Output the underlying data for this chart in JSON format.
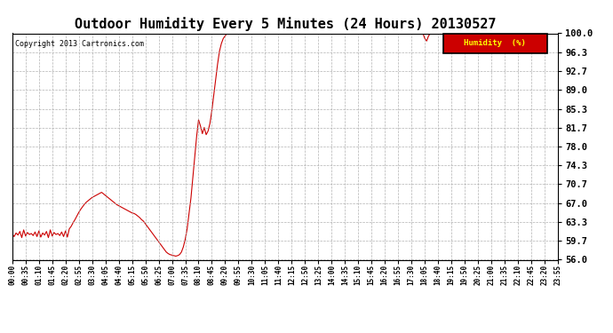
{
  "title": "Outdoor Humidity Every 5 Minutes (24 Hours) 20130527",
  "copyright": "Copyright 2013 Cartronics.com",
  "legend_label": "Humidity  (%)",
  "ylim": [
    56.0,
    100.0
  ],
  "yticks": [
    56.0,
    59.7,
    63.3,
    67.0,
    70.7,
    74.3,
    78.0,
    81.7,
    85.3,
    89.0,
    92.7,
    96.3,
    100.0
  ],
  "line_color": "#cc0000",
  "bg_color": "#ffffff",
  "grid_color": "#aaaaaa",
  "title_fontsize": 11,
  "legend_bg": "#cc0000",
  "legend_text_color": "#FFFF00",
  "humidity_values": [
    61.0,
    60.5,
    61.2,
    60.8,
    61.5,
    60.3,
    61.8,
    60.6,
    61.3,
    60.9,
    61.1,
    60.7,
    61.4,
    60.5,
    61.6,
    60.4,
    61.2,
    60.8,
    61.5,
    60.3,
    61.8,
    60.6,
    61.3,
    60.9,
    61.1,
    60.7,
    61.4,
    60.5,
    61.6,
    60.4,
    62.0,
    62.5,
    63.2,
    63.8,
    64.5,
    65.2,
    65.8,
    66.3,
    66.8,
    67.2,
    67.5,
    67.8,
    68.1,
    68.3,
    68.5,
    68.7,
    68.9,
    69.1,
    68.8,
    68.5,
    68.2,
    67.9,
    67.6,
    67.3,
    67.0,
    66.7,
    66.5,
    66.3,
    66.1,
    65.9,
    65.7,
    65.5,
    65.3,
    65.1,
    65.0,
    64.8,
    64.5,
    64.2,
    63.8,
    63.5,
    63.0,
    62.5,
    62.0,
    61.5,
    61.0,
    60.5,
    60.0,
    59.5,
    59.0,
    58.5,
    58.0,
    57.5,
    57.2,
    57.0,
    56.9,
    56.8,
    56.7,
    56.8,
    57.0,
    57.5,
    58.5,
    60.0,
    62.0,
    65.0,
    68.0,
    72.0,
    76.0,
    80.0,
    83.2,
    82.0,
    80.5,
    81.7,
    80.3,
    81.0,
    82.5,
    85.0,
    88.0,
    91.0,
    94.0,
    96.5,
    98.0,
    99.0,
    99.5,
    100.0,
    100.0,
    100.0,
    100.0,
    100.0,
    100.0,
    100.0,
    100.0,
    100.0,
    100.0,
    100.0,
    100.0,
    100.0,
    100.0,
    100.0,
    100.0,
    100.0,
    100.0,
    100.0,
    100.0,
    100.0,
    100.0,
    100.0,
    100.0,
    100.0,
    100.0,
    100.0,
    100.0,
    100.0,
    100.0,
    100.0,
    100.0,
    100.0,
    100.0,
    100.0,
    100.0,
    100.0,
    100.0,
    100.0,
    100.0,
    100.0,
    100.0,
    100.0,
    100.0,
    100.0,
    100.0,
    100.0,
    100.0,
    100.0,
    100.0,
    100.0,
    100.0,
    100.0,
    100.0,
    100.0,
    100.0,
    100.0,
    100.0,
    100.0,
    100.0,
    100.0,
    100.0,
    100.0,
    100.0,
    100.0,
    100.0,
    100.0,
    100.0,
    100.0,
    100.0,
    100.0,
    100.0,
    100.0,
    100.0,
    100.0,
    100.0,
    100.0,
    100.0,
    100.0,
    100.0,
    100.0,
    100.0,
    100.0,
    100.0,
    100.0,
    100.0,
    100.0,
    100.0,
    100.0,
    100.0,
    100.0,
    100.0,
    100.0,
    100.0,
    100.0,
    100.0,
    100.0,
    100.0,
    100.0,
    100.0,
    100.0,
    100.0,
    100.0,
    100.0,
    99.0,
    98.5,
    99.5,
    100.0,
    100.0,
    100.0,
    100.0,
    100.0,
    100.0,
    100.0,
    100.0,
    100.0,
    100.0,
    100.0,
    100.0,
    100.0,
    100.0,
    100.0,
    100.0,
    100.0,
    100.0,
    100.0,
    100.0,
    100.0,
    100.0,
    100.0,
    100.0,
    100.0,
    100.0,
    100.0,
    100.0,
    100.0,
    100.0,
    100.0,
    100.0,
    100.0,
    100.0,
    100.0,
    100.0,
    100.0,
    100.0,
    100.0,
    100.0,
    100.0,
    100.0,
    100.0,
    100.0,
    100.0,
    100.0,
    100.0,
    100.0,
    100.0,
    100.0,
    100.0,
    100.0,
    100.0,
    100.0,
    100.0,
    100.0,
    100.0,
    100.0,
    100.0,
    100.0,
    100.0,
    100.0,
    100.0,
    100.0,
    100.0,
    100.0,
    100.0,
    100.0
  ],
  "tick_step": 7,
  "n_points": 288
}
